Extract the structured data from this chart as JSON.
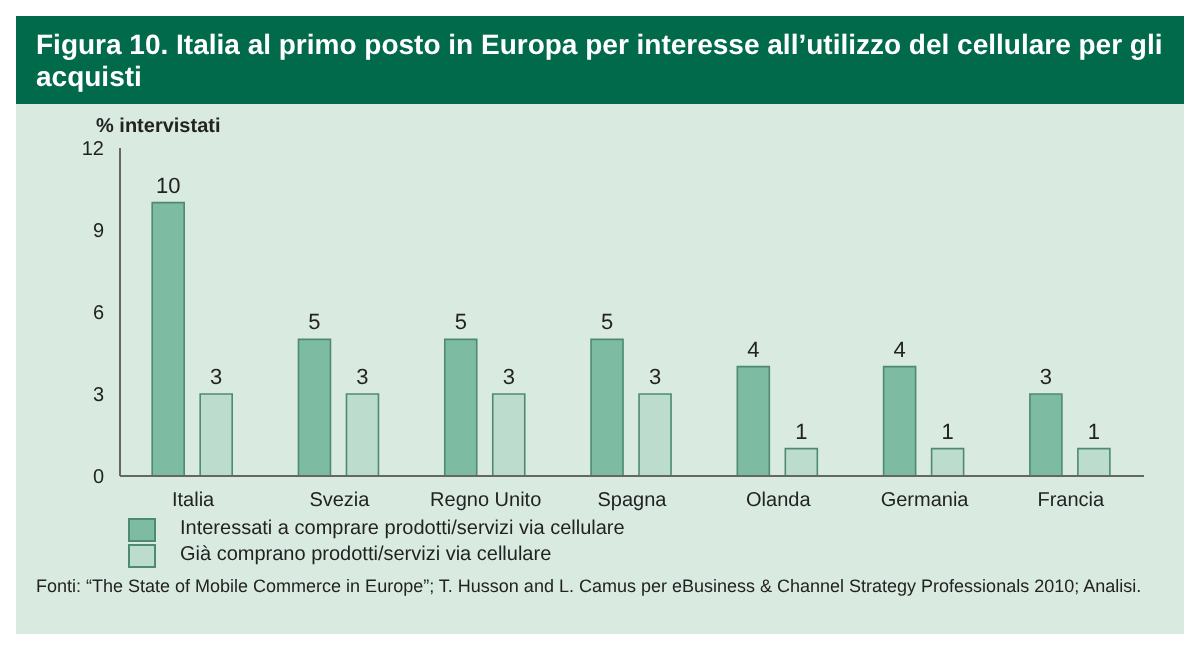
{
  "chart_data": {
    "type": "bar",
    "title": "Figura 10. Italia al primo posto in Europa per interesse all’utilizzo del cellulare per gli acquisti",
    "ylabel": "% intervistati",
    "categories": [
      "Italia",
      "Svezia",
      "Regno Unito",
      "Spagna",
      "Olanda",
      "Germania",
      "Francia"
    ],
    "series": [
      {
        "name": "Interessati a comprare prodotti/servizi via cellulare",
        "color": "#7dbba2",
        "values": [
          10,
          5,
          5,
          5,
          4,
          4,
          3
        ]
      },
      {
        "name": "Già comprano prodotti/servizi via cellulare",
        "color": "#bcdccd",
        "values": [
          3,
          3,
          3,
          3,
          1,
          1,
          1
        ]
      }
    ],
    "ylim": [
      0,
      12
    ],
    "yticks": [
      0,
      3,
      6,
      9,
      12
    ],
    "grid": false,
    "legend": "bottom left",
    "data_labels": true,
    "annotations": [
      "Fonti: “The State of Mobile Commerce in Europe”; T. Husson and L. Camus per eBusiness & Channel Strategy Professionals 2010; Analisi."
    ]
  }
}
